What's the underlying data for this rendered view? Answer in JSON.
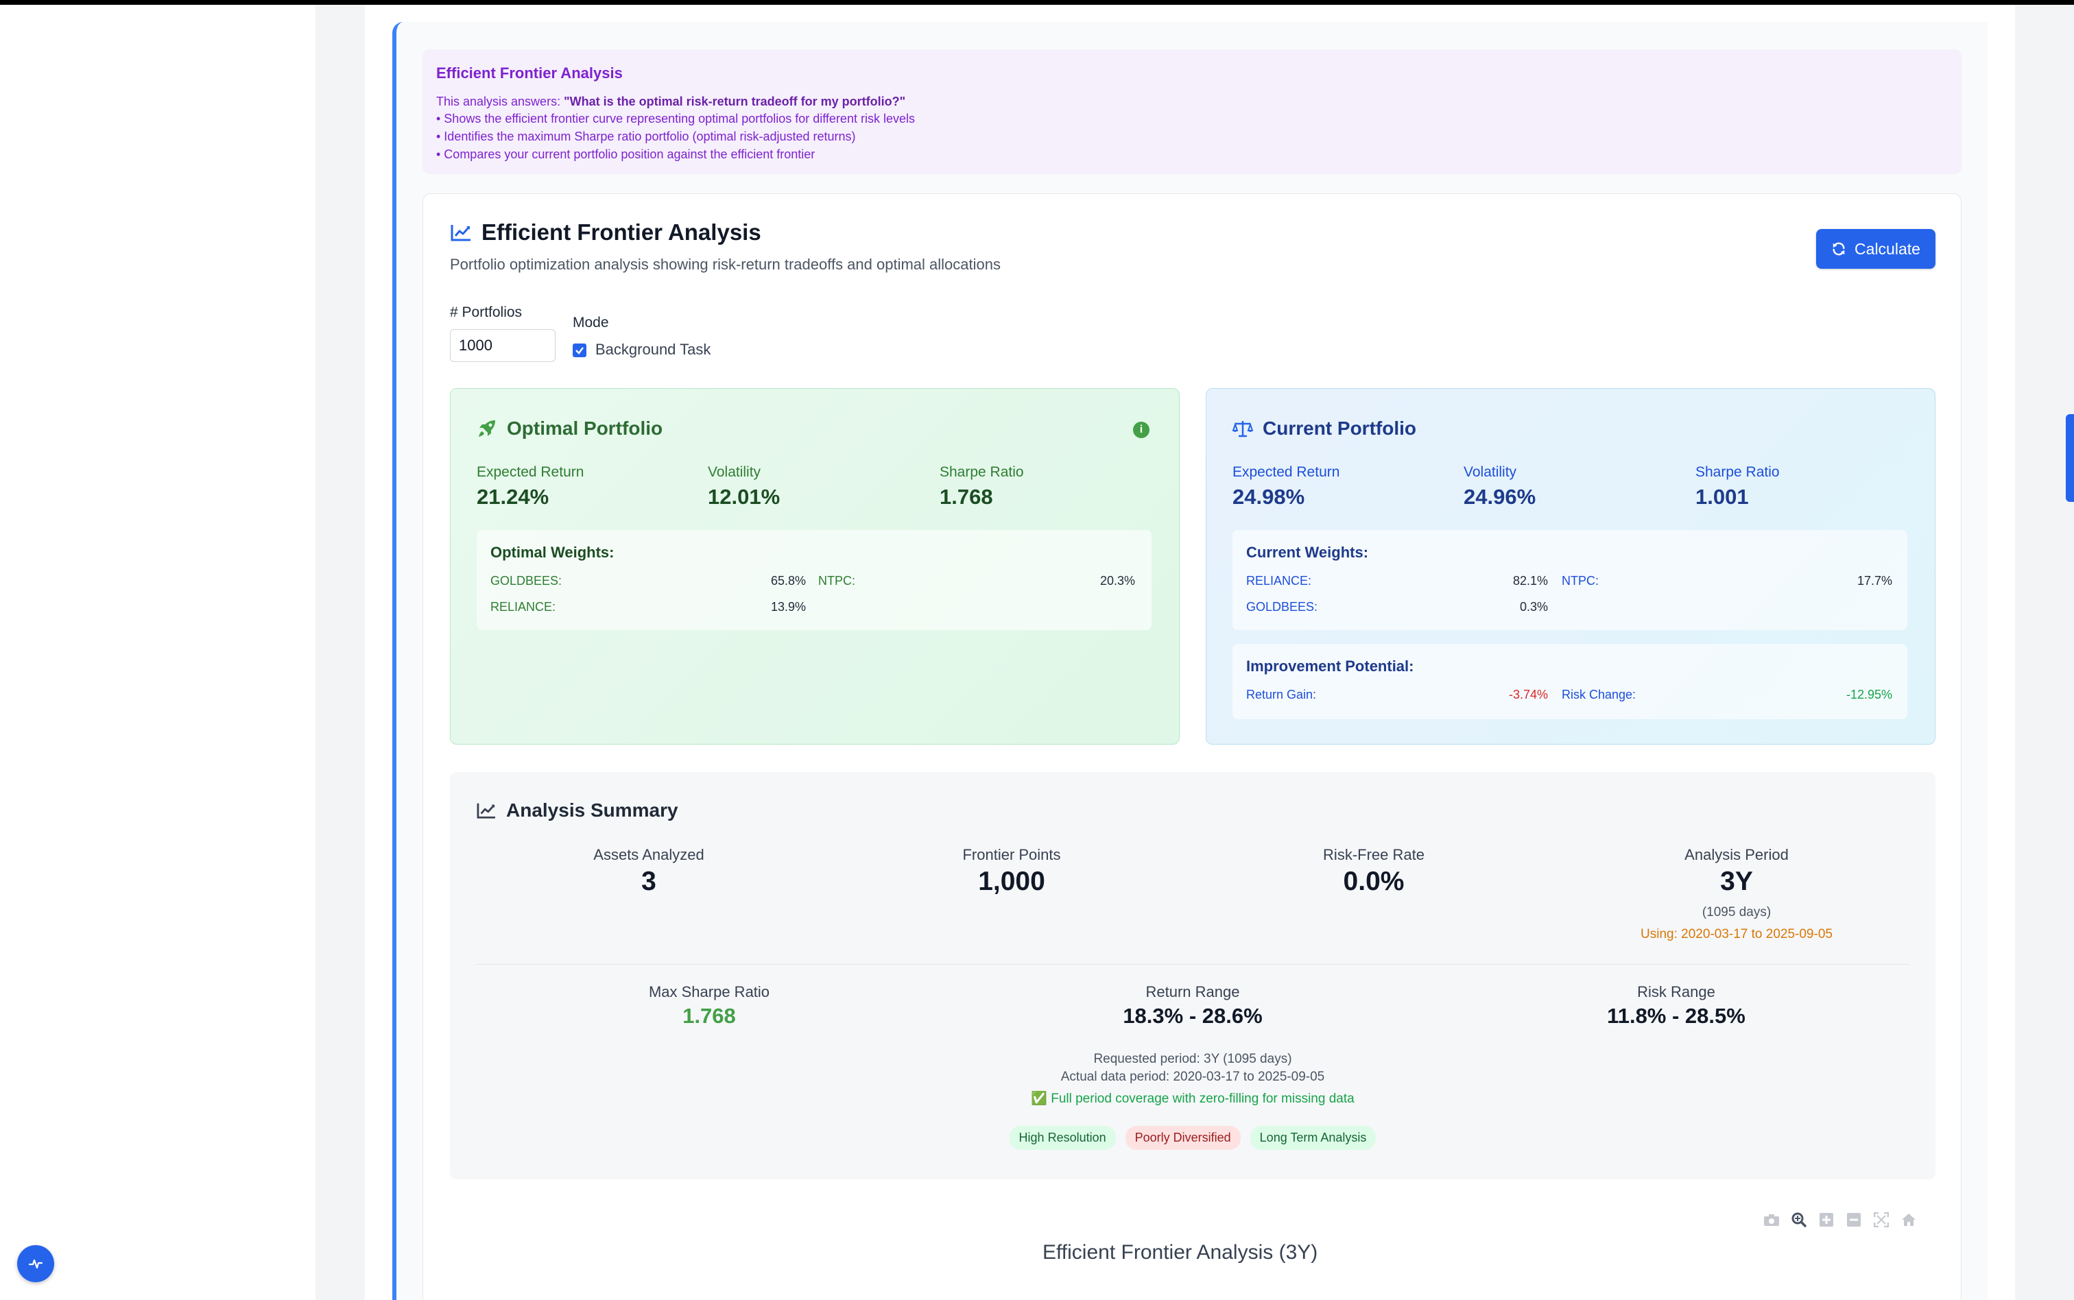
{
  "info": {
    "title": "Efficient Frontier Analysis",
    "question_prefix": "This analysis answers: ",
    "question": "\"What is the optimal risk-return tradeoff for my portfolio?\"",
    "bullets": [
      "• Shows the efficient frontier curve representing optimal portfolios for different risk levels",
      "• Identifies the maximum Sharpe ratio portfolio (optimal risk-adjusted returns)",
      "• Compares your current portfolio position against the efficient frontier"
    ]
  },
  "header": {
    "title": "Efficient Frontier Analysis",
    "subtitle": "Portfolio optimization analysis showing risk-return tradeoffs and optimal allocations",
    "calculate_label": "Calculate"
  },
  "controls": {
    "portfolios_label": "# Portfolios",
    "portfolios_value": "1000",
    "mode_label": "Mode",
    "background_task_label": "Background Task",
    "background_task_checked": true
  },
  "optimal": {
    "title": "Optimal Portfolio",
    "metrics": [
      {
        "label": "Expected Return",
        "value": "21.24%"
      },
      {
        "label": "Volatility",
        "value": "12.01%"
      },
      {
        "label": "Sharpe Ratio",
        "value": "1.768"
      }
    ],
    "weights_title": "Optimal Weights:",
    "weights": [
      {
        "name": "GOLDBEES:",
        "value": "65.8%"
      },
      {
        "name": "NTPC:",
        "value": "20.3%"
      },
      {
        "name": "RELIANCE:",
        "value": "13.9%"
      }
    ]
  },
  "current": {
    "title": "Current Portfolio",
    "metrics": [
      {
        "label": "Expected Return",
        "value": "24.98%"
      },
      {
        "label": "Volatility",
        "value": "24.96%"
      },
      {
        "label": "Sharpe Ratio",
        "value": "1.001"
      }
    ],
    "weights_title": "Current Weights:",
    "weights": [
      {
        "name": "RELIANCE:",
        "value": "82.1%"
      },
      {
        "name": "NTPC:",
        "value": "17.7%"
      },
      {
        "name": "GOLDBEES:",
        "value": "0.3%"
      }
    ],
    "improvement_title": "Improvement Potential:",
    "return_gain_label": "Return Gain:",
    "return_gain_value": "-3.74%",
    "risk_change_label": "Risk Change:",
    "risk_change_value": "-12.95%"
  },
  "summary": {
    "title": "Analysis Summary",
    "stats": [
      {
        "label": "Assets Analyzed",
        "value": "3"
      },
      {
        "label": "Frontier Points",
        "value": "1,000"
      },
      {
        "label": "Risk-Free Rate",
        "value": "0.0%"
      },
      {
        "label": "Analysis Period",
        "value": "3Y"
      }
    ],
    "period_days": "(1095 days)",
    "period_using": "Using: 2020-03-17 to 2025-09-05",
    "stats2": [
      {
        "label": "Max Sharpe Ratio",
        "value": "1.768"
      },
      {
        "label": "Return Range",
        "value": "18.3% - 28.6%"
      },
      {
        "label": "Risk Range",
        "value": "11.8% - 28.5%"
      }
    ],
    "requested_period": "Requested period: 3Y (1095 days)",
    "actual_period": "Actual data period: 2020-03-17 to 2025-09-05",
    "coverage": "✅ Full period coverage with zero-filling for missing data",
    "badges": [
      {
        "label": "High Resolution",
        "bg": "#dcfce7",
        "fg": "#166534"
      },
      {
        "label": "Poorly Diversified",
        "bg": "#fee2e2",
        "fg": "#991b1b"
      },
      {
        "label": "Long Term Analysis",
        "bg": "#dcfce7",
        "fg": "#166534"
      }
    ]
  },
  "chart": {
    "title": "Efficient Frontier Analysis (3Y)"
  },
  "colors": {
    "accent": "#2563eb",
    "optimal_text": "#2e7d32",
    "current_text": "#1e3a8a",
    "info_purple": "#7e22ce",
    "negative": "#dc2626",
    "positive": "#16a34a",
    "period_orange": "#d97706"
  },
  "icons": {
    "info_card": "chart-line-icon",
    "optimal": "rocket-icon",
    "current": "balance-scale-icon",
    "summary": "chart-line-icon",
    "calculate": "refresh-icon",
    "fab": "activity-icon",
    "toolbar": [
      "camera-icon",
      "zoom-icon",
      "plus-box-icon",
      "minus-box-icon",
      "autoscale-icon",
      "home-icon"
    ]
  }
}
